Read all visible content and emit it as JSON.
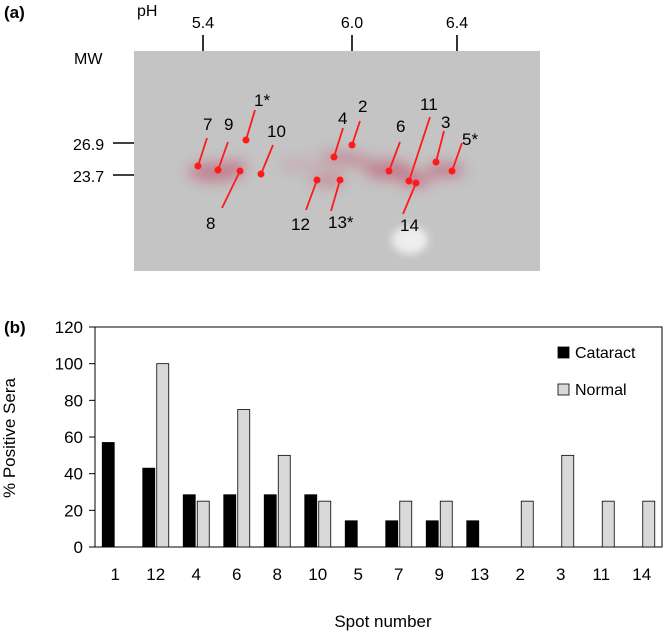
{
  "panel_a": {
    "label": "(a)",
    "ph_label": "pH",
    "ph_ticks": [
      {
        "value": 5.4,
        "label": "5.4"
      },
      {
        "value": 6.0,
        "label": "6.0"
      },
      {
        "value": 6.4,
        "label": "6.4"
      }
    ],
    "mw_label": "MW",
    "mw_ticks": [
      {
        "value": 26.9,
        "label": "26.9"
      },
      {
        "value": 23.7,
        "label": "23.7"
      }
    ],
    "spot_labels": [
      "1*",
      "2",
      "3",
      "4",
      "5*",
      "6",
      "7",
      "8",
      "9",
      "10",
      "11",
      "12",
      "13*",
      "14"
    ],
    "colors": {
      "gel": "#c4c4c4",
      "marker": "#ff1a1a",
      "stain": "#c2607a"
    }
  },
  "chart_data": {
    "type": "bar",
    "panel_label": "(b)",
    "title": "",
    "xlabel": "Spot number",
    "ylabel": "% Positive Sera",
    "ylim": [
      0,
      120
    ],
    "yticks": [
      0,
      20,
      40,
      60,
      80,
      100,
      120
    ],
    "grid": false,
    "legend_position": "top-right",
    "categories": [
      "1",
      "12",
      "4",
      "6",
      "8",
      "10",
      "5",
      "7",
      "9",
      "13",
      "2",
      "3",
      "11",
      "14"
    ],
    "series": [
      {
        "name": "Cataract",
        "color": "#000000",
        "values": [
          57,
          43,
          28.5,
          28.5,
          28.5,
          28.5,
          14.3,
          14.3,
          14.3,
          14.3,
          0,
          0,
          0,
          0
        ]
      },
      {
        "name": "Normal",
        "color": "#d9d9d9",
        "values": [
          0,
          100,
          25,
          75,
          50,
          25,
          0,
          25,
          25,
          0,
          25,
          50,
          25,
          25
        ]
      }
    ]
  }
}
